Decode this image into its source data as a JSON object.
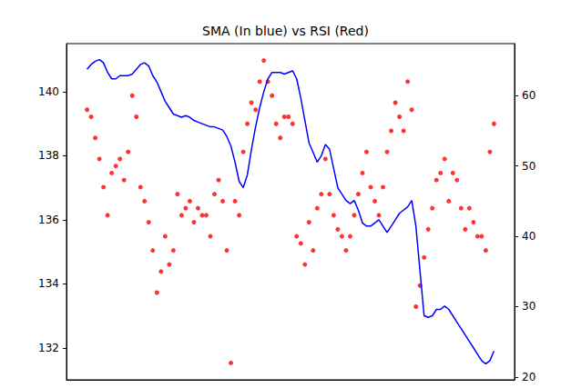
{
  "chart_data": {
    "type": "line",
    "title": "SMA (In blue) vs RSI (Red)",
    "categories": [
      null,
      null,
      null,
      null,
      null,
      null,
      null,
      null,
      null,
      null,
      null,
      null,
      null,
      null,
      null,
      null,
      null,
      null,
      null,
      null,
      null,
      null,
      null,
      null,
      null,
      null,
      null,
      null,
      null,
      null,
      null,
      null,
      null,
      null,
      null,
      null,
      null,
      null,
      null,
      null,
      null,
      null,
      null,
      null,
      null,
      null,
      null,
      null,
      null,
      null,
      null,
      null,
      null,
      null,
      null,
      null,
      null,
      null,
      null,
      null,
      null,
      null,
      null,
      null,
      null,
      null,
      null,
      null,
      null,
      null,
      null,
      null,
      null,
      null,
      null,
      null,
      null,
      null,
      null,
      null,
      null,
      null,
      null,
      null,
      null,
      null,
      null,
      null,
      null,
      null,
      null,
      null,
      null,
      null,
      null,
      null,
      null,
      null,
      null,
      null,
      null,
      null,
      null,
      null,
      null,
      null,
      null,
      null,
      null,
      null
    ],
    "series": [
      {
        "type": "line",
        "color": "#0000ff",
        "line_style": "solid",
        "axis": "y",
        "values": [
          null,
          null,
          null,
          null,
          null,
          140.7,
          140.85,
          140.95,
          141.0,
          140.9,
          140.6,
          140.4,
          140.4,
          140.5,
          140.5,
          140.5,
          140.55,
          140.7,
          140.85,
          140.9,
          140.8,
          140.5,
          140.3,
          140.0,
          139.7,
          139.5,
          139.3,
          139.25,
          139.2,
          139.25,
          139.2,
          139.1,
          139.05,
          139.0,
          138.95,
          138.9,
          138.9,
          138.85,
          138.8,
          138.6,
          138.3,
          137.8,
          137.2,
          137.0,
          137.4,
          138.2,
          138.9,
          139.5,
          140.0,
          140.4,
          140.6,
          140.6,
          140.6,
          140.55,
          140.6,
          140.65,
          140.4,
          139.8,
          139.1,
          138.4,
          138.1,
          137.8,
          138.0,
          138.35,
          138.2,
          137.6,
          137.0,
          136.8,
          136.6,
          136.5,
          136.6,
          136.3,
          135.9,
          135.8,
          135.8,
          135.9,
          136.0,
          135.8,
          135.6,
          135.8,
          136.0,
          136.2,
          136.3,
          136.4,
          136.6,
          135.8,
          134.4,
          133.0,
          132.95,
          133.0,
          133.2,
          133.2,
          133.3,
          133.2,
          133.0,
          132.8,
          132.6,
          132.4,
          132.2,
          132.0,
          131.8,
          131.6,
          131.5,
          131.6,
          131.9,
          null,
          null,
          null,
          null,
          null
        ]
      },
      {
        "type": "scatter",
        "color": "#ff0000",
        "marker": "circle",
        "axis": "y2",
        "values": [
          null,
          null,
          null,
          null,
          null,
          58,
          57,
          54,
          51,
          47,
          43,
          49,
          50,
          51,
          48,
          52,
          60,
          57,
          47,
          45,
          42,
          38,
          32,
          35,
          40,
          36,
          38,
          46,
          43,
          44,
          45,
          42,
          44,
          43,
          43,
          40,
          46,
          48,
          45,
          38,
          22,
          45,
          43,
          52,
          56,
          59,
          58,
          62,
          65,
          62,
          60,
          56,
          54,
          57,
          57,
          56,
          40,
          39,
          36,
          42,
          38,
          44,
          46,
          51,
          46,
          43,
          41,
          40,
          38,
          40,
          43,
          46,
          49,
          52,
          47,
          45,
          43,
          47,
          52,
          55,
          59,
          57,
          55,
          62,
          58,
          30,
          33,
          37,
          41,
          44,
          48,
          49,
          51,
          45,
          49,
          48,
          44,
          41,
          44,
          42,
          40,
          40,
          38,
          52,
          56,
          null,
          null,
          null,
          null,
          null
        ]
      }
    ],
    "ylim": [
      131,
      141.5
    ],
    "yticks": [
      132,
      134,
      136,
      138,
      140
    ],
    "y2lim": [
      19.6,
      67.4
    ],
    "y2ticks": [
      20,
      30,
      40,
      50,
      60
    ],
    "grid": false
  }
}
